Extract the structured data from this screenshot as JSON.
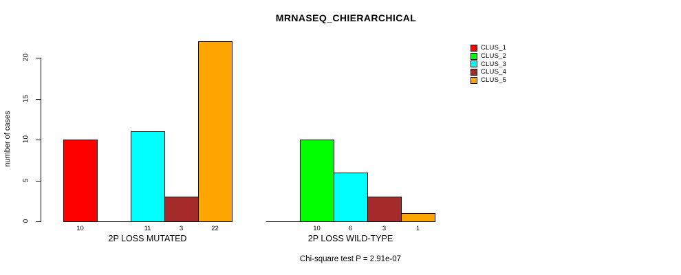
{
  "chart_data": {
    "type": "bar",
    "title": "MRNASEQ_CHIERARCHICAL",
    "ylabel": "number of cases",
    "xlabel": "",
    "categories": [
      "2P LOSS MUTATED",
      "2P LOSS WILD-TYPE"
    ],
    "series": [
      {
        "name": "CLUS_1",
        "color": "#ff0000",
        "values": [
          10,
          0
        ]
      },
      {
        "name": "CLUS_2",
        "color": "#00ff00",
        "values": [
          0,
          10
        ]
      },
      {
        "name": "CLUS_3",
        "color": "#00ffff",
        "values": [
          11,
          6
        ]
      },
      {
        "name": "CLUS_4",
        "color": "#a52a2a",
        "values": [
          3,
          3
        ]
      },
      {
        "name": "CLUS_5",
        "color": "#ffa500",
        "values": [
          22,
          1
        ]
      }
    ],
    "yticks": [
      0,
      5,
      10,
      15,
      20
    ],
    "ylim": [
      0,
      22
    ],
    "grid": false,
    "legend_position": "top-right",
    "bar_value_labels": "values shown under each nonzero bar",
    "annotation": "Chi-square test P = 2.91e-07"
  }
}
